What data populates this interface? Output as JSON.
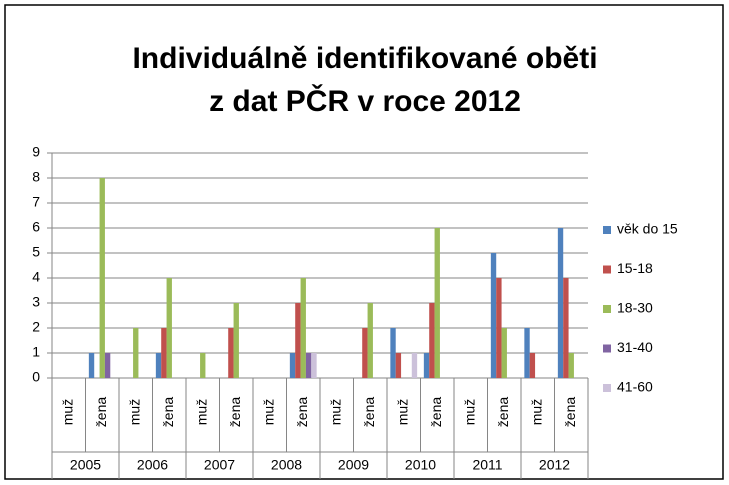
{
  "chart_data": {
    "type": "bar",
    "title": [
      "Individuálně identifikované oběti",
      "z dat PČR v roce 2012"
    ],
    "groups": [
      "2005",
      "2006",
      "2007",
      "2008",
      "2009",
      "2010",
      "2011",
      "2012"
    ],
    "categories": [
      "muž",
      "žena",
      "muž",
      "žena",
      "muž",
      "žena",
      "muž",
      "žena",
      "muž",
      "žena",
      "muž",
      "žena",
      "muž",
      "žena",
      "muž",
      "žena"
    ],
    "series": [
      {
        "name": "věk do 15",
        "color": "#4f81bd",
        "values": [
          0,
          1,
          0,
          1,
          0,
          0,
          0,
          1,
          0,
          0,
          2,
          1,
          0,
          5,
          2,
          6
        ]
      },
      {
        "name": "15-18",
        "color": "#c0504d",
        "values": [
          0,
          0,
          0,
          2,
          0,
          2,
          0,
          3,
          0,
          2,
          1,
          3,
          0,
          4,
          1,
          4
        ]
      },
      {
        "name": "18-30",
        "color": "#9bbb59",
        "values": [
          0,
          8,
          2,
          4,
          1,
          3,
          0,
          4,
          0,
          3,
          0,
          6,
          0,
          2,
          0,
          1
        ]
      },
      {
        "name": "31-40",
        "color": "#8064a2",
        "values": [
          0,
          1,
          0,
          0,
          0,
          0,
          0,
          1,
          0,
          0,
          0,
          0,
          0,
          0,
          0,
          0
        ]
      },
      {
        "name": "41-60",
        "color": "#ccc1da",
        "values": [
          0,
          0,
          0,
          0,
          0,
          0,
          0,
          1,
          0,
          0,
          1,
          0,
          0,
          0,
          0,
          0
        ]
      }
    ],
    "ylim": [
      0,
      9
    ],
    "yticks": [
      0,
      1,
      2,
      3,
      4,
      5,
      6,
      7,
      8,
      9
    ],
    "grid": true,
    "legend": "right"
  }
}
